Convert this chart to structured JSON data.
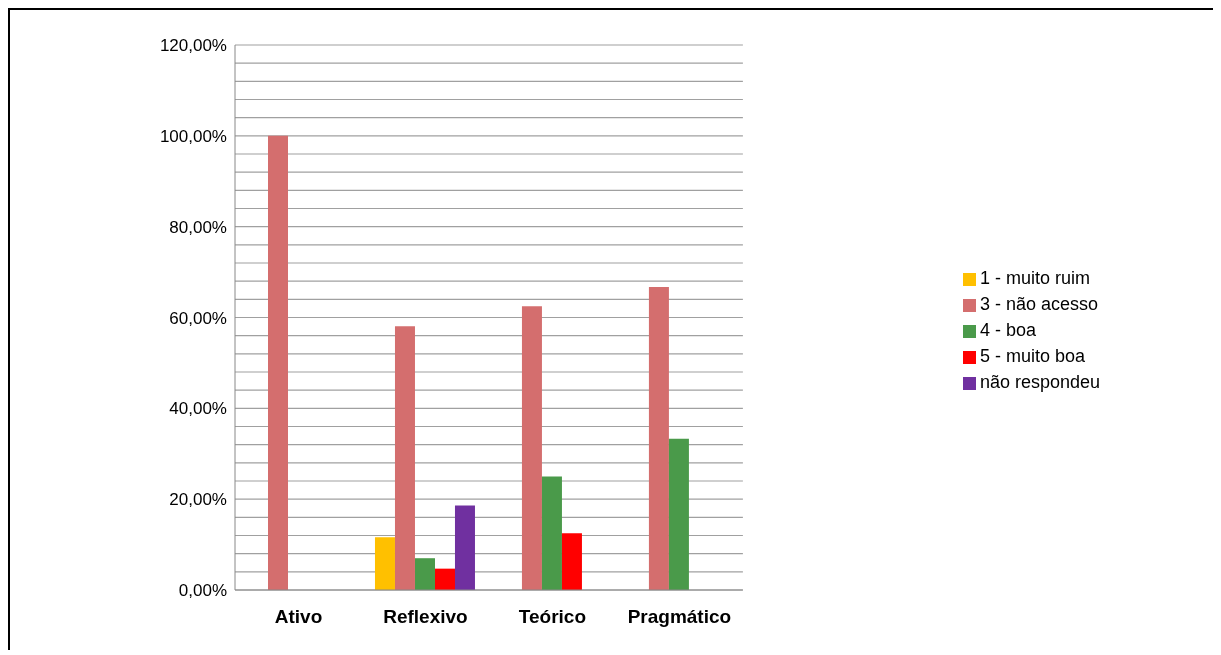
{
  "chart_data": {
    "type": "bar",
    "categories": [
      "Ativo",
      "Reflexivo",
      "Teórico",
      "Pragmático"
    ],
    "series": [
      {
        "name": "1 - muito ruim",
        "color": "#ffc000",
        "values": [
          null,
          11.6,
          null,
          null
        ]
      },
      {
        "name": "3 - não acesso",
        "color": "#d46e6e",
        "values": [
          100,
          58.1,
          62.5,
          66.7
        ]
      },
      {
        "name": "4 - boa",
        "color": "#4a9a4a",
        "values": [
          null,
          7,
          25,
          33.3
        ]
      },
      {
        "name": "5 - muito boa",
        "color": "#ff0000",
        "values": [
          null,
          4.7,
          12.5,
          null
        ]
      },
      {
        "name": "não respondeu",
        "color": "#7030a0",
        "values": [
          null,
          18.6,
          null,
          null
        ]
      }
    ],
    "ylim": [
      0,
      120
    ],
    "yticks": [
      {
        "value": 0,
        "label": "0,00%"
      },
      {
        "value": 4,
        "label": null
      },
      {
        "value": 8,
        "label": null
      },
      {
        "value": 12,
        "label": null
      },
      {
        "value": 16,
        "label": null
      },
      {
        "value": 20,
        "label": "20,00%"
      },
      {
        "value": 24,
        "label": null
      },
      {
        "value": 28,
        "label": null
      },
      {
        "value": 32,
        "label": null
      },
      {
        "value": 36,
        "label": null
      },
      {
        "value": 40,
        "label": "40,00%"
      },
      {
        "value": 44,
        "label": null
      },
      {
        "value": 48,
        "label": null
      },
      {
        "value": 52,
        "label": null
      },
      {
        "value": 56,
        "label": null
      },
      {
        "value": 60,
        "label": "60,00%"
      },
      {
        "value": 64,
        "label": null
      },
      {
        "value": 68,
        "label": null
      },
      {
        "value": 72,
        "label": null
      },
      {
        "value": 76,
        "label": null
      },
      {
        "value": 80,
        "label": "80,00%"
      },
      {
        "value": 84,
        "label": null
      },
      {
        "value": 88,
        "label": null
      },
      {
        "value": 92,
        "label": null
      },
      {
        "value": 96,
        "label": null
      },
      {
        "value": 100,
        "label": "100,00%"
      },
      {
        "value": 104,
        "label": null
      },
      {
        "value": 108,
        "label": null
      },
      {
        "value": 112,
        "label": null
      },
      {
        "value": 116,
        "label": null
      },
      {
        "value": 120,
        "label": "120,00%"
      }
    ],
    "grid": "y",
    "legend": "right"
  }
}
